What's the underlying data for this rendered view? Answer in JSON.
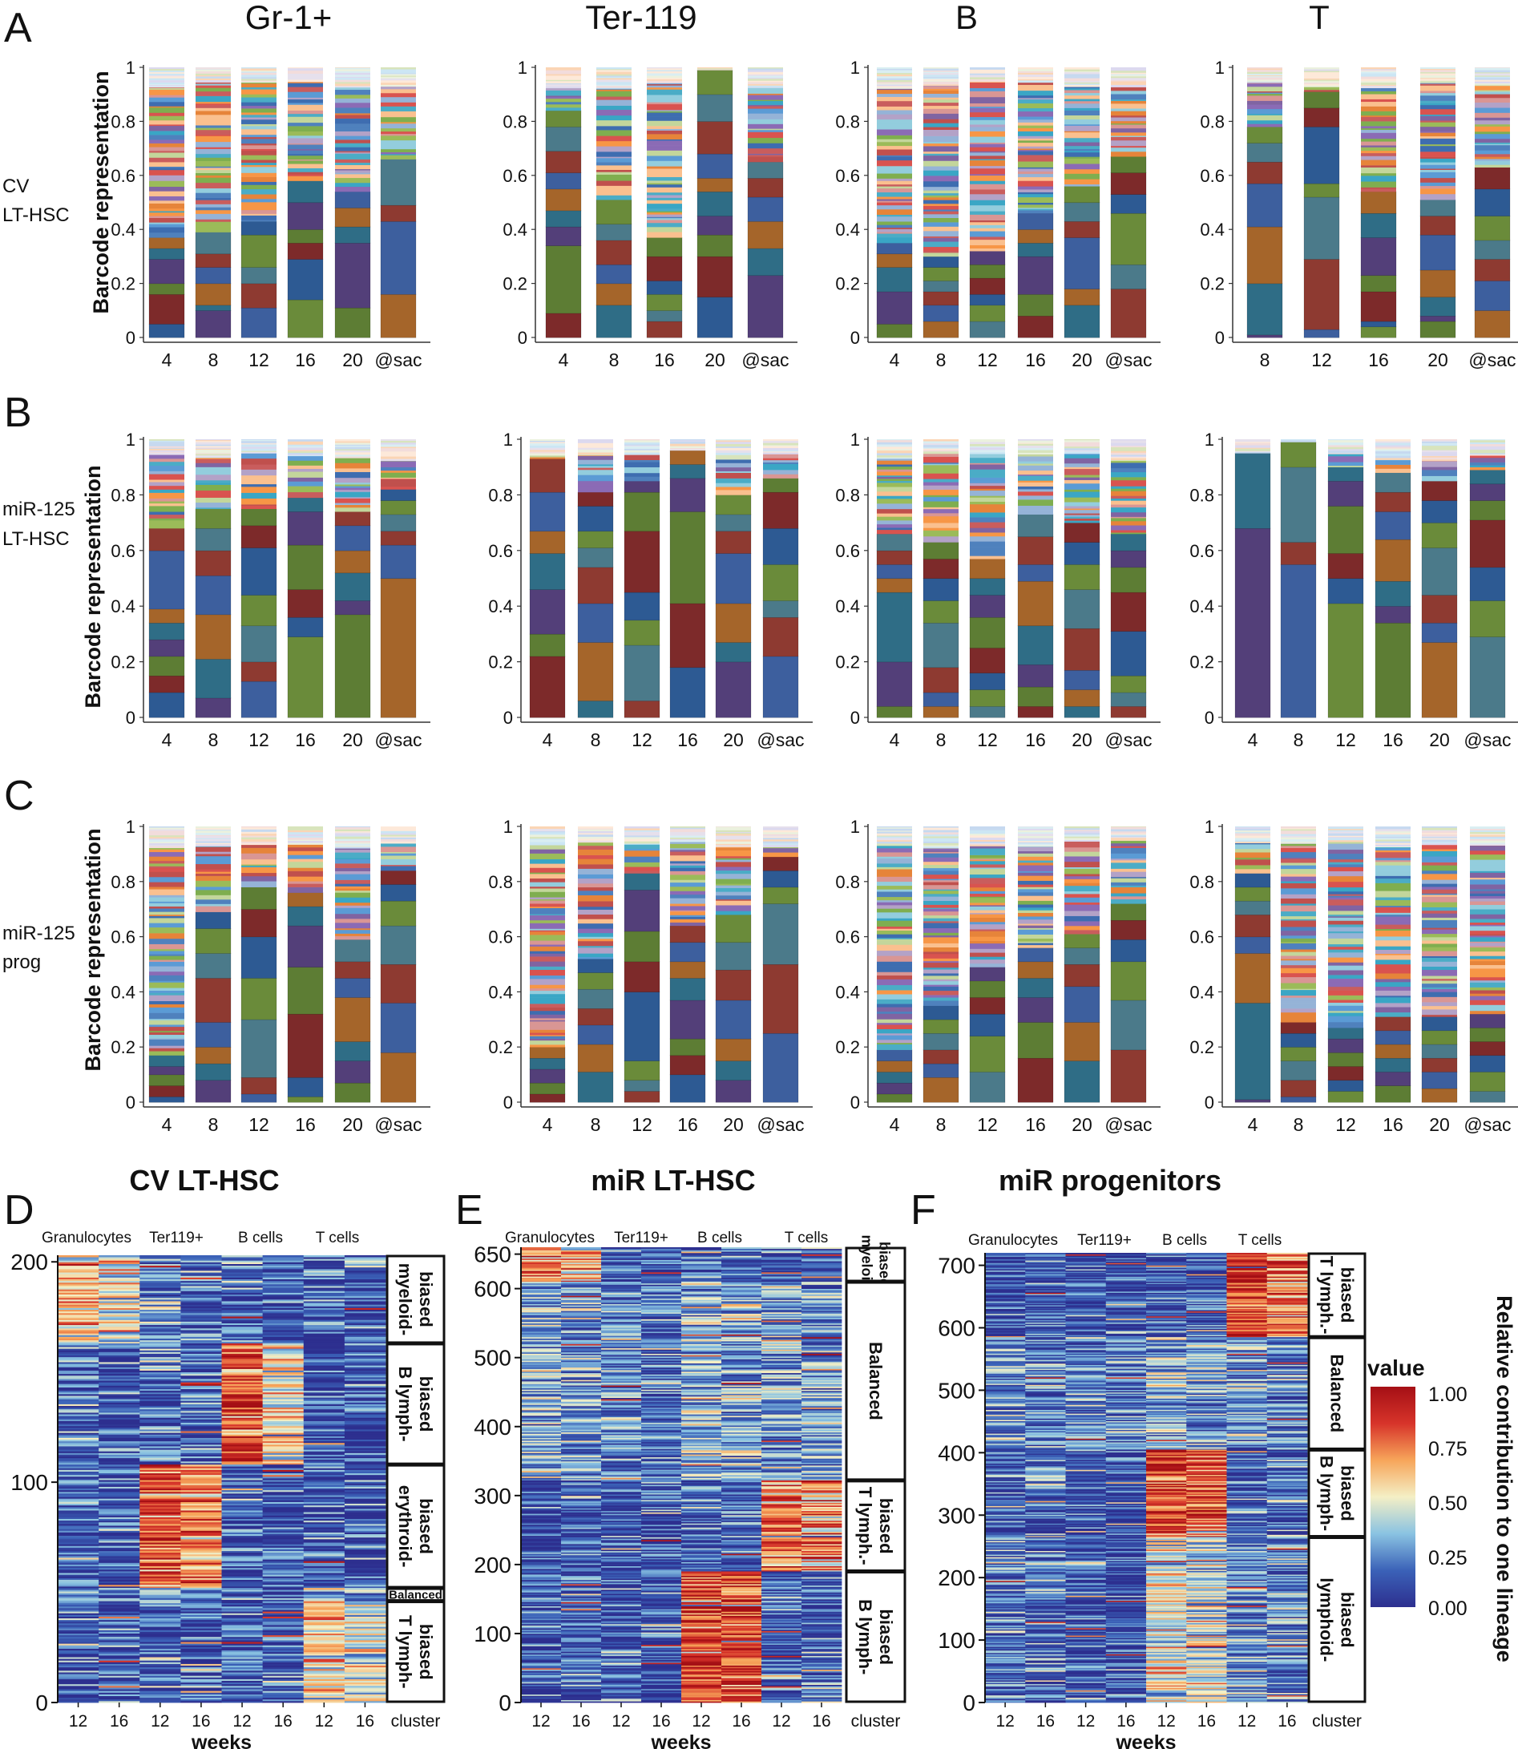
{
  "figure": {
    "panel_letters": [
      "A",
      "B",
      "C",
      "D",
      "E",
      "F"
    ],
    "column_titles": [
      "Gr-1+",
      "Ter-119",
      "B",
      "T"
    ],
    "row_labels": [
      [
        "CV",
        "LT-HSC"
      ],
      [
        "miR-125",
        "LT-HSC"
      ],
      [
        "miR-125",
        "prog"
      ]
    ],
    "ylabel": "Barcode representation",
    "yticks": [
      "0",
      "0.2",
      "0.4",
      "0.6",
      "0.8",
      "1"
    ]
  },
  "chart_data": [
    {
      "type": "bar",
      "stacked": true,
      "row": "A",
      "lineage": "Gr-1+",
      "categories": [
        "4",
        "8",
        "12",
        "16",
        "20",
        "@sac"
      ],
      "ylim": [
        0,
        1
      ],
      "major": [
        [
          0.05,
          0.11,
          0.04,
          0.09,
          0.04,
          0.04
        ],
        [
          0.1,
          0.02,
          0.08,
          0.06,
          0.05,
          0.08
        ],
        [
          0.11,
          0.09,
          0.06,
          0.12,
          0.05
        ],
        [
          0.14,
          0.15,
          0.06,
          0.05,
          0.1,
          0.08
        ],
        [
          0.11,
          0.24,
          0.06,
          0.07,
          0.06
        ],
        [
          0.16,
          0.27,
          0.06,
          0.17
        ]
      ]
    },
    {
      "type": "bar",
      "stacked": true,
      "row": "A",
      "lineage": "Ter-119",
      "categories": [
        "4",
        "8",
        "16",
        "20",
        "@sac"
      ],
      "ylim": [
        0,
        1
      ],
      "major": [
        [
          0.09,
          0.25,
          0.07,
          0.06,
          0.08,
          0.06,
          0.08,
          0.09,
          0.06
        ],
        [
          0.12,
          0.08,
          0.07,
          0.09,
          0.06,
          0.09
        ],
        [
          0.06,
          0.04,
          0.06,
          0.05,
          0.09,
          0.07
        ],
        [
          0.15,
          0.15,
          0.08,
          0.07,
          0.09,
          0.05,
          0.09,
          0.12,
          0.1,
          0.09
        ],
        [
          0.23,
          0.1,
          0.1,
          0.09,
          0.07,
          0.06
        ]
      ]
    },
    {
      "type": "bar",
      "stacked": true,
      "row": "A",
      "lineage": "B",
      "categories": [
        "4",
        "8",
        "12",
        "16",
        "20",
        "@sac"
      ],
      "ylim": [
        0,
        1
      ],
      "major": [
        [
          0.05,
          0.12,
          0.09,
          0.05,
          0.04
        ],
        [
          0.06,
          0.06,
          0.05,
          0.04,
          0.05,
          0.04
        ],
        [
          0.06,
          0.06,
          0.04,
          0.06,
          0.05,
          0.05
        ],
        [
          0.08,
          0.08,
          0.14,
          0.05,
          0.05,
          0.06
        ],
        [
          0.12,
          0.06,
          0.19,
          0.06,
          0.07,
          0.06
        ],
        [
          0.18,
          0.09,
          0.19,
          0.07,
          0.08,
          0.06
        ]
      ]
    },
    {
      "type": "bar",
      "stacked": true,
      "row": "A",
      "lineage": "T",
      "categories": [
        "8",
        "12",
        "16",
        "20",
        "@sac"
      ],
      "ylim": [
        0,
        1
      ],
      "major": [
        [
          0.01,
          0.19,
          0.21,
          0.16,
          0.08,
          0.07,
          0.06
        ],
        [
          0.03,
          0.26,
          0.23,
          0.05,
          0.21,
          0.07,
          0.06
        ],
        [
          0.04,
          0.02,
          0.11,
          0.06,
          0.14,
          0.09,
          0.08
        ],
        [
          0.06,
          0.02,
          0.07,
          0.1,
          0.13,
          0.07,
          0.06
        ],
        [
          0.1,
          0.11,
          0.08,
          0.07,
          0.09,
          0.1,
          0.08
        ]
      ]
    },
    {
      "type": "bar",
      "stacked": true,
      "row": "B",
      "lineage": "Gr-1+",
      "categories": [
        "4",
        "8",
        "12",
        "16",
        "20",
        "@sac"
      ],
      "ylim": [
        0,
        1
      ],
      "major": [
        [
          0.09,
          0.06,
          0.07,
          0.06,
          0.06,
          0.05,
          0.21,
          0.08
        ],
        [
          0.07,
          0.14,
          0.16,
          0.14,
          0.09,
          0.08,
          0.07
        ],
        [
          0.13,
          0.07,
          0.13,
          0.11,
          0.17,
          0.08,
          0.06
        ],
        [
          0.29,
          0.07,
          0.1,
          0.16,
          0.12,
          0.05
        ],
        [
          0.37,
          0.05,
          0.1,
          0.08,
          0.09,
          0.05
        ],
        [
          0.5,
          0.12,
          0.05,
          0.06,
          0.05,
          0.04
        ]
      ]
    },
    {
      "type": "bar",
      "stacked": true,
      "row": "B",
      "lineage": "Ter-119",
      "categories": [
        "4",
        "8",
        "12",
        "16",
        "20",
        "@sac"
      ],
      "ylim": [
        0,
        1
      ],
      "major": [
        [
          0.22,
          0.08,
          0.16,
          0.13,
          0.08,
          0.14,
          0.12
        ],
        [
          0.06,
          0.21,
          0.14,
          0.13,
          0.07,
          0.06,
          0.09,
          0.05
        ],
        [
          0.06,
          0.2,
          0.09,
          0.1,
          0.22,
          0.14,
          0.04
        ],
        [
          0.18,
          0.23,
          0.33,
          0.12,
          0.05,
          0.05
        ],
        [
          0.2,
          0.07,
          0.14,
          0.18,
          0.08,
          0.06,
          0.07
        ],
        [
          0.22,
          0.14,
          0.06,
          0.13,
          0.13,
          0.13,
          0.05
        ]
      ]
    },
    {
      "type": "bar",
      "stacked": true,
      "row": "B",
      "lineage": "B",
      "categories": [
        "4",
        "8",
        "12",
        "16",
        "20",
        "@sac"
      ],
      "ylim": [
        0,
        1
      ],
      "major": [
        [
          0.04,
          0.16,
          0.25,
          0.05,
          0.05,
          0.05,
          0.06
        ],
        [
          0.04,
          0.05,
          0.09,
          0.16,
          0.08,
          0.08,
          0.07,
          0.06
        ],
        [
          0.04,
          0.06,
          0.06,
          0.09,
          0.11,
          0.08,
          0.06,
          0.07
        ],
        [
          0.04,
          0.07,
          0.08,
          0.14,
          0.16,
          0.06,
          0.1,
          0.08
        ],
        [
          0.04,
          0.06,
          0.07,
          0.15,
          0.14,
          0.09,
          0.08,
          0.07
        ],
        [
          0.04,
          0.05,
          0.06,
          0.16,
          0.14,
          0.09,
          0.06,
          0.06
        ]
      ]
    },
    {
      "type": "bar",
      "stacked": true,
      "row": "B",
      "lineage": "T",
      "categories": [
        "4",
        "8",
        "12",
        "16",
        "20",
        "@sac"
      ],
      "ylim": [
        0,
        1
      ],
      "major": [
        [
          0.68,
          0.27
        ],
        [
          0.55,
          0.08,
          0.27,
          0.09
        ],
        [
          0.41,
          0.09,
          0.09,
          0.17,
          0.09,
          0.05
        ],
        [
          0.34,
          0.06,
          0.09,
          0.15,
          0.1,
          0.07,
          0.07
        ],
        [
          0.27,
          0.07,
          0.1,
          0.17,
          0.09,
          0.08,
          0.07
        ],
        [
          0.29,
          0.13,
          0.12,
          0.17,
          0.07,
          0.06,
          0.05
        ]
      ]
    },
    {
      "type": "bar",
      "stacked": true,
      "row": "C",
      "lineage": "Gr-1+",
      "categories": [
        "4",
        "8",
        "12",
        "16",
        "20",
        "@sac"
      ],
      "ylim": [
        0,
        1
      ],
      "major": [
        [
          0.02,
          0.04,
          0.04,
          0.03,
          0.04
        ],
        [
          0.08,
          0.06,
          0.06,
          0.09,
          0.16,
          0.09,
          0.09,
          0.06
        ],
        [
          0.03,
          0.06,
          0.21,
          0.15,
          0.15,
          0.1,
          0.08
        ],
        [
          0.02,
          0.07,
          0.23,
          0.17,
          0.15,
          0.07,
          0.05
        ],
        [
          0.07,
          0.08,
          0.07,
          0.16,
          0.07,
          0.06,
          0.08
        ],
        [
          0.18,
          0.18,
          0.14,
          0.14,
          0.09,
          0.06,
          0.05
        ]
      ]
    },
    {
      "type": "bar",
      "stacked": true,
      "row": "C",
      "lineage": "Ter-119",
      "categories": [
        "4",
        "8",
        "12",
        "16",
        "20",
        "@sac"
      ],
      "ylim": [
        0,
        1
      ],
      "major": [
        [
          0.03,
          0.04,
          0.05,
          0.04,
          0.04
        ],
        [
          0.11,
          0.1,
          0.07,
          0.06,
          0.07,
          0.06,
          0.05
        ],
        [
          0.04,
          0.04,
          0.07,
          0.25,
          0.11,
          0.11,
          0.15,
          0.06
        ],
        [
          0.1,
          0.07,
          0.06,
          0.14,
          0.08,
          0.06,
          0.07,
          0.06
        ],
        [
          0.08,
          0.07,
          0.08,
          0.14,
          0.11,
          0.1,
          0.1
        ],
        [
          0.25,
          0.25,
          0.22,
          0.06,
          0.06,
          0.05
        ]
      ]
    },
    {
      "type": "bar",
      "stacked": true,
      "row": "C",
      "lineage": "B",
      "categories": [
        "4",
        "8",
        "12",
        "16",
        "20",
        "@sac"
      ],
      "ylim": [
        0,
        1
      ],
      "major": [
        [
          0.03,
          0.04,
          0.04,
          0.04,
          0.04
        ],
        [
          0.09,
          0.05,
          0.05,
          0.06,
          0.05,
          0.05
        ],
        [
          0.11,
          0.13,
          0.08,
          0.06,
          0.06,
          0.05
        ],
        [
          0.16,
          0.13,
          0.09,
          0.07,
          0.06,
          0.05
        ],
        [
          0.15,
          0.14,
          0.13,
          0.08,
          0.06,
          0.05
        ],
        [
          0.19,
          0.18,
          0.14,
          0.08,
          0.07,
          0.06
        ]
      ]
    },
    {
      "type": "bar",
      "stacked": true,
      "row": "C",
      "lineage": "T",
      "categories": [
        "4",
        "8",
        "12",
        "16",
        "20",
        "@sac"
      ],
      "ylim": [
        0,
        1
      ],
      "major": [
        [
          0.01,
          0.35,
          0.18,
          0.06,
          0.08,
          0.05,
          0.05,
          0.05
        ],
        [
          0.02,
          0.06,
          0.07,
          0.05,
          0.05,
          0.04
        ],
        [
          0.04,
          0.04,
          0.05,
          0.05,
          0.05,
          0.04
        ],
        [
          0.06,
          0.05,
          0.05,
          0.05,
          0.05,
          0.05
        ],
        [
          0.05,
          0.06,
          0.05,
          0.05,
          0.05,
          0.05
        ],
        [
          0.04,
          0.07,
          0.06,
          0.05,
          0.05,
          0.05
        ]
      ]
    },
    {
      "type": "heatmap",
      "panel": "D",
      "title": "CV LT-HSC",
      "groups": [
        "Granulocytes",
        "Ter119+",
        "B cells",
        "T cells"
      ],
      "xcols": [
        "12",
        "16",
        "12",
        "16",
        "12",
        "16",
        "12",
        "16"
      ],
      "xlabel": "weeks",
      "cluster_label": "cluster",
      "yticks": [
        "0",
        "100",
        "200"
      ],
      "ymax": 203,
      "seed": 7,
      "clusters": [
        {
          "label": [
            "myeloid-",
            "biased"
          ],
          "from": 163,
          "to": 203,
          "profile": [
            0.6,
            0.5,
            0.25,
            0.2,
            0.2,
            0.1,
            0.15,
            0.12
          ]
        },
        {
          "label": [
            "B lymph-",
            "biased"
          ],
          "from": 108,
          "to": 163,
          "profile": [
            0.15,
            0.12,
            0.18,
            0.15,
            0.8,
            0.5,
            0.1,
            0.1
          ]
        },
        {
          "label": [
            "erythroid-",
            "biased"
          ],
          "from": 52,
          "to": 108,
          "profile": [
            0.15,
            0.12,
            0.8,
            0.7,
            0.12,
            0.12,
            0.1,
            0.1
          ]
        },
        {
          "label": [
            "Balanced"
          ],
          "from": 46,
          "to": 52,
          "profile": [
            0.2,
            0.2,
            0.25,
            0.2,
            0.2,
            0.2,
            0.35,
            0.3
          ]
        },
        {
          "label": [
            "T lymph-",
            "biased"
          ],
          "from": 0,
          "to": 46,
          "profile": [
            0.15,
            0.12,
            0.18,
            0.12,
            0.15,
            0.12,
            0.55,
            0.4
          ]
        }
      ]
    },
    {
      "type": "heatmap",
      "panel": "E",
      "title": "miR LT-HSC",
      "groups": [
        "Granulocytes",
        "Ter119+",
        "B cells",
        "T cells"
      ],
      "xcols": [
        "12",
        "16",
        "12",
        "16",
        "12",
        "16",
        "12",
        "16"
      ],
      "xlabel": "weeks",
      "cluster_label": "cluster",
      "yticks": [
        "0",
        "100",
        "200",
        "300",
        "400",
        "500",
        "600",
        "650"
      ],
      "ymax": 660,
      "seed": 11,
      "clusters": [
        {
          "label": [
            "myeloid-",
            "biased"
          ],
          "from": 610,
          "to": 660,
          "profile": [
            0.7,
            0.62,
            0.15,
            0.12,
            0.15,
            0.12,
            0.12,
            0.12
          ]
        },
        {
          "label": [
            "Balanced"
          ],
          "from": 322,
          "to": 610,
          "profile": [
            0.28,
            0.25,
            0.22,
            0.2,
            0.35,
            0.3,
            0.28,
            0.25
          ]
        },
        {
          "label": [
            "T lymph.-",
            "biased"
          ],
          "from": 190,
          "to": 322,
          "profile": [
            0.1,
            0.1,
            0.1,
            0.1,
            0.15,
            0.15,
            0.75,
            0.68
          ]
        },
        {
          "label": [
            "B lymph-",
            "biased"
          ],
          "from": 0,
          "to": 190,
          "profile": [
            0.12,
            0.12,
            0.12,
            0.12,
            0.85,
            0.82,
            0.15,
            0.15
          ]
        }
      ]
    },
    {
      "type": "heatmap",
      "panel": "F",
      "title": "miR progenitors",
      "groups": [
        "Granulocytes",
        "Ter119+",
        "B cells",
        "T cells"
      ],
      "xcols": [
        "12",
        "16",
        "12",
        "16",
        "12",
        "16",
        "12",
        "16"
      ],
      "xlabel": "weeks",
      "cluster_label": "cluster",
      "yticks": [
        "0",
        "100",
        "200",
        "300",
        "400",
        "500",
        "600",
        "700"
      ],
      "ymax": 720,
      "seed": 23,
      "clusters": [
        {
          "label": [
            "T lymph.-",
            "biased"
          ],
          "from": 585,
          "to": 720,
          "profile": [
            0.1,
            0.1,
            0.12,
            0.1,
            0.12,
            0.12,
            0.82,
            0.7
          ]
        },
        {
          "label": [
            "Balanced"
          ],
          "from": 405,
          "to": 585,
          "profile": [
            0.25,
            0.22,
            0.25,
            0.22,
            0.3,
            0.28,
            0.25,
            0.22
          ]
        },
        {
          "label": [
            "B lymph-",
            "biased"
          ],
          "from": 265,
          "to": 405,
          "profile": [
            0.15,
            0.15,
            0.08,
            0.08,
            0.82,
            0.78,
            0.15,
            0.15
          ]
        },
        {
          "label": [
            "lymphoid-",
            "biased"
          ],
          "from": 0,
          "to": 265,
          "profile": [
            0.2,
            0.18,
            0.12,
            0.1,
            0.5,
            0.42,
            0.25,
            0.22
          ]
        }
      ]
    }
  ],
  "colorbar": {
    "title": "value",
    "ticks": [
      "1.00",
      "0.75",
      "0.50",
      "0.25",
      "0.00"
    ],
    "label": "Relative contribution to one lineage",
    "stops": [
      "#2d2f8f",
      "#3b62b8",
      "#8ac3e2",
      "#f4efc5",
      "#f7a55a",
      "#d7342a",
      "#a50f15"
    ]
  },
  "palette": {
    "major": [
      "#2d5a93",
      "#7d2a2a",
      "#5d7d34",
      "#533f79",
      "#2f6d86",
      "#a5652a",
      "#3d5f9e",
      "#8e3a31",
      "#4b7a8a",
      "#6a8b3a"
    ],
    "minor": [
      "#3e6db0",
      "#c95d5d",
      "#7fae4f",
      "#8b6bb5",
      "#3aa6c5",
      "#e6843a",
      "#5b9bd5",
      "#d9534f",
      "#9bbb59",
      "#8064a2",
      "#4bacc6",
      "#f79646",
      "#c0504d",
      "#4f81bd",
      "#b3a2c7",
      "#93cddd",
      "#fac08f",
      "#d99694",
      "#c3d69b",
      "#95b3d7"
    ],
    "top": [
      "#dcd9ef",
      "#d9eef2",
      "#f2dcdb",
      "#ebf1de",
      "#fde9d9",
      "#e6e0ec",
      "#c6d9f0",
      "#fbd5b5",
      "#d8e4bc",
      "#cce6f4"
    ]
  }
}
